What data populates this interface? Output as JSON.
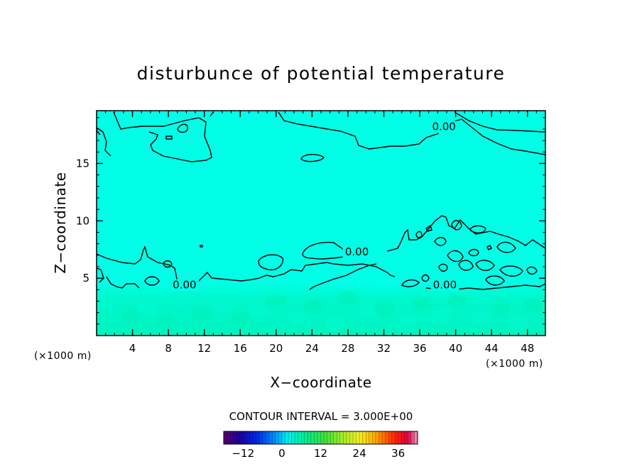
{
  "chart_data": {
    "type": "heatmap",
    "title": "disturbunce of potential temperature",
    "xlabel": "X−coordinate",
    "ylabel": "Z−coordinate",
    "x_unit": "(×1000 m)",
    "y_unit": "(×1000 m)",
    "xlim": [
      0,
      50
    ],
    "ylim": [
      0,
      19.6
    ],
    "x_ticks": [
      4,
      8,
      12,
      16,
      20,
      24,
      28,
      32,
      36,
      40,
      44,
      48
    ],
    "x_tick_labels": [
      "4",
      "8",
      "12",
      "16",
      "20",
      "24",
      "28",
      "32",
      "36",
      "40",
      "44",
      "48"
    ],
    "y_ticks": [
      5,
      10,
      15
    ],
    "y_tick_labels": [
      "5",
      "10",
      "15"
    ],
    "contour_interval_text": "CONTOUR INTERVAL = 3.000E+00",
    "contour_labels": [
      {
        "text": "0.00",
        "x": 38.7,
        "y": 17.9
      },
      {
        "text": "0.00",
        "x": 29.0,
        "y": 7.0
      },
      {
        "text": "0.00",
        "x": 9.8,
        "y": 4.1
      },
      {
        "text": "0.00",
        "x": 38.8,
        "y": 4.1
      }
    ],
    "field": {
      "background_value": 0,
      "near_surface_layer": {
        "z_top": 4.2,
        "value_range": [
          0,
          3
        ]
      }
    },
    "colorbar": {
      "vmin": -18,
      "vmax": 42,
      "ticks": [
        -12,
        0,
        12,
        24,
        36
      ],
      "tick_labels": [
        "−12",
        "0",
        "12",
        "24",
        "36"
      ]
    },
    "colors": {
      "background_field": "#00ffe6",
      "surface_layer": "#00f5c2",
      "contour_line": "#000000"
    }
  }
}
